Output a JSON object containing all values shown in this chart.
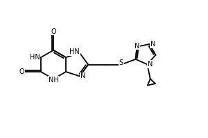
{
  "bg_color": "#ffffff",
  "line_color": "#000000",
  "line_width": 1.3,
  "font_size": 7.0,
  "fig_width": 3.0,
  "fig_height": 2.0,
  "dpi": 100,
  "xlim": [
    0,
    10
  ],
  "ylim": [
    0,
    6.67
  ]
}
